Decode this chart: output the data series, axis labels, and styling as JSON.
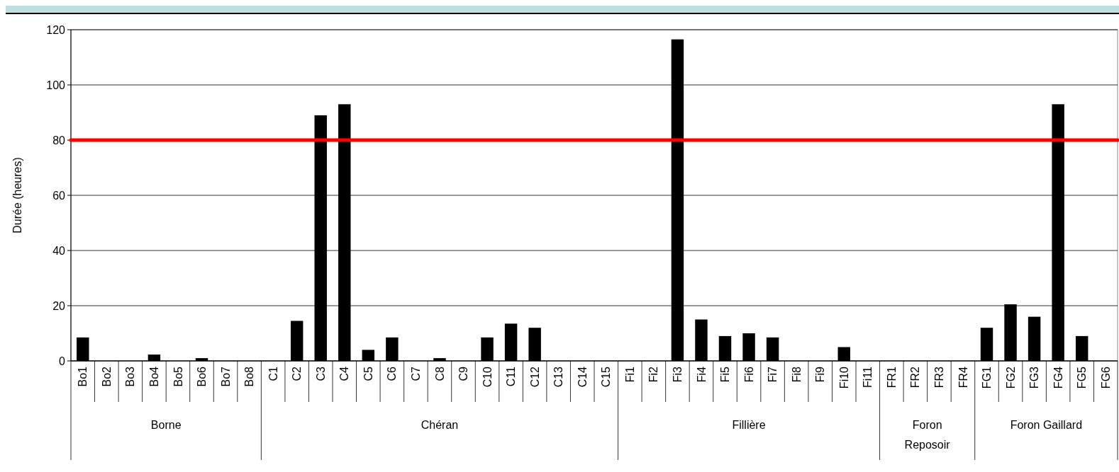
{
  "chart_data": {
    "type": "bar",
    "ylabel": "Durée (heures)",
    "categories": [
      "Bo1",
      "Bo2",
      "Bo3",
      "Bo4",
      "Bo5",
      "Bo6",
      "Bo7",
      "Bo8",
      "C1",
      "C2",
      "C3",
      "C4",
      "C5",
      "C6",
      "C7",
      "C8",
      "C9",
      "C10",
      "C11",
      "C12",
      "C13",
      "C14",
      "C15",
      "Fi1",
      "Fi2",
      "Fi3",
      "Fi4",
      "Fi5",
      "Fi6",
      "Fi7",
      "Fi8",
      "Fi9",
      "Fi10",
      "Fi11",
      "FR1",
      "FR2",
      "FR3",
      "FR4",
      "FG1",
      "FG2",
      "FG3",
      "FG4",
      "FG5",
      "FG6"
    ],
    "values": [
      8.5,
      0,
      0,
      2.3,
      0,
      1,
      0,
      0,
      0,
      14.5,
      89,
      93,
      4,
      8.5,
      0,
      1,
      0,
      8.5,
      13.5,
      12,
      0,
      0,
      0,
      0,
      0,
      116.5,
      15,
      9,
      10,
      8.5,
      0,
      0,
      5,
      0,
      0,
      0,
      0,
      0,
      12,
      20.5,
      16,
      93,
      9,
      0
    ],
    "color": "#000000",
    "ylim": [
      0,
      120
    ],
    "yticks": [
      0,
      20,
      40,
      60,
      80,
      100,
      120
    ],
    "grid": "y",
    "ref_lines": [
      {
        "axis": "y",
        "value": 80,
        "color": "#ff0000"
      }
    ],
    "annotations": [
      "Borne",
      "Chéran",
      "Fillière",
      "Foron Reposoir",
      "Foron Gaillard"
    ]
  }
}
